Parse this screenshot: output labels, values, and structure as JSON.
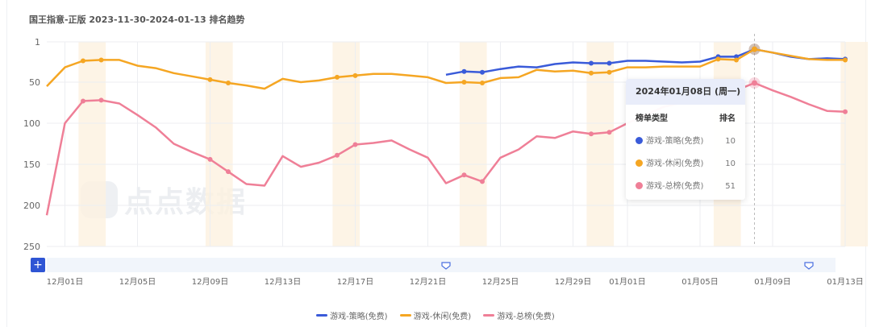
{
  "title": "国王指意-正版 2023-11-30-2024-01-13 排名趋势",
  "watermark": "点点数据",
  "chart_data": {
    "type": "line",
    "title": "国王指意-正版 2023-11-30-2024-01-13 排名趋势",
    "x_start": "2023-11-30",
    "x_end": "2024-01-13",
    "x_tick_labels": [
      "12月01日",
      "12月05日",
      "12月09日",
      "12月13日",
      "12月17日",
      "12月21日",
      "12月25日",
      "12月29日",
      "01月01日",
      "01月05日",
      "01月09日",
      "01月13日"
    ],
    "x_tick_dates": [
      "2023-12-01",
      "2023-12-05",
      "2023-12-09",
      "2023-12-13",
      "2023-12-17",
      "2023-12-21",
      "2023-12-25",
      "2023-12-29",
      "2024-01-01",
      "2024-01-05",
      "2024-01-09",
      "2024-01-13"
    ],
    "y_axis": {
      "inverted": true,
      "ylim": [
        1,
        250
      ],
      "ticks": [
        "1",
        "50",
        "100",
        "150",
        "200",
        "250"
      ]
    },
    "grid": true,
    "weekend_shading": true,
    "legend_position": "bottom",
    "series": [
      {
        "name": "游戏-策略(免费)",
        "color": "#3a5bd9",
        "start_date": "2023-12-22",
        "values": [
          41,
          37,
          38,
          34,
          31,
          32,
          28,
          26,
          27,
          27,
          24,
          24,
          25,
          26,
          25,
          19,
          19,
          10,
          14,
          19,
          22,
          21,
          22
        ]
      },
      {
        "name": "游戏-休闲(免费)",
        "color": "#f5a623",
        "start_date": "2023-11-30",
        "values": [
          55,
          32,
          24,
          23,
          23,
          30,
          33,
          39,
          43,
          47,
          51,
          54,
          58,
          46,
          50,
          48,
          44,
          42,
          40,
          40,
          42,
          44,
          51,
          50,
          51,
          45,
          44,
          35,
          37,
          36,
          39,
          38,
          32,
          32,
          31,
          31,
          31,
          22,
          23,
          10,
          14,
          18,
          22,
          23,
          23
        ]
      },
      {
        "name": "游戏-总榜(免费)",
        "color": "#ef7f97",
        "start_date": "2023-11-30",
        "values": [
          212,
          100,
          73,
          72,
          76,
          90,
          105,
          125,
          135,
          144,
          159,
          174,
          176,
          140,
          153,
          148,
          139,
          126,
          124,
          121,
          132,
          142,
          173,
          163,
          171,
          142,
          132,
          116,
          118,
          110,
          113,
          111,
          100,
          90,
          80,
          75,
          70,
          65,
          60,
          51,
          60,
          68,
          77,
          85,
          86
        ]
      }
    ],
    "tooltip": {
      "date": "2024年01月08日 (周一)",
      "col_type": "榜单类型",
      "col_rank": "排名",
      "rows": [
        {
          "name": "游戏-策略(免费)",
          "value": "10",
          "color": "#3a5bd9"
        },
        {
          "name": "游戏-休闲(免费)",
          "value": "10",
          "color": "#f5a623"
        },
        {
          "name": "游戏-总榜(免费)",
          "value": "51",
          "color": "#ef7f97"
        }
      ]
    }
  },
  "zoom_button": "+"
}
